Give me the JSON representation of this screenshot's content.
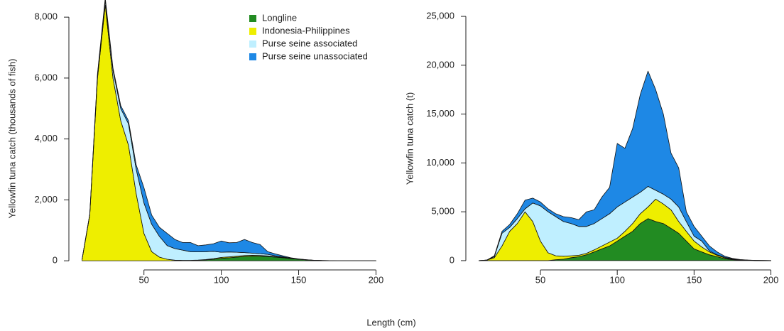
{
  "xlabel": "Length (cm)",
  "chart_data": [
    {
      "type": "stacked_area",
      "ylabel": "Yellowfin tuna catch (thousands of fish)",
      "legend": "topright",
      "x": [
        10,
        15,
        20,
        25,
        30,
        35,
        40,
        45,
        50,
        55,
        60,
        65,
        70,
        75,
        80,
        85,
        90,
        95,
        100,
        105,
        110,
        115,
        120,
        125,
        130,
        135,
        140,
        145,
        150,
        155,
        160,
        165,
        170,
        175,
        180,
        185,
        190,
        195,
        200
      ],
      "xlim": [
        2.4,
        207.6
      ],
      "xticks": [
        50,
        100,
        150,
        200
      ],
      "ylim": [
        -300,
        8330
      ],
      "yticks": [
        0,
        {
          "value": 2000,
          "label": "2,000"
        },
        {
          "value": 4000,
          "label": "4,000"
        },
        {
          "value": 6000,
          "label": "6,000"
        },
        {
          "value": 8000,
          "label": "8,000"
        }
      ],
      "series": [
        {
          "name": "Longline",
          "color": "#228b22",
          "values": [
            0,
            0,
            0,
            0,
            0,
            0,
            0,
            0,
            0,
            0,
            0,
            0,
            0,
            5,
            10,
            20,
            30,
            50,
            80,
            100,
            120,
            140,
            150,
            150,
            140,
            120,
            100,
            70,
            50,
            30,
            15,
            8,
            5,
            2,
            1,
            0,
            0,
            0,
            0
          ]
        },
        {
          "name": "Indonesia-Philippines",
          "color": "#eeee00",
          "values": [
            50,
            1500,
            6000,
            8400,
            6000,
            4600,
            3800,
            2200,
            900,
            300,
            120,
            50,
            20,
            10,
            5,
            5,
            10,
            20,
            30,
            30,
            30,
            30,
            30,
            25,
            20,
            15,
            10,
            5,
            2,
            1,
            0,
            0,
            0,
            0,
            0,
            0,
            0,
            0,
            0
          ]
        },
        {
          "name": "Purse seine associated",
          "color": "#bfefff",
          "values": [
            0,
            20,
            100,
            150,
            250,
            400,
            700,
            800,
            1000,
            900,
            680,
            450,
            380,
            335,
            285,
            270,
            260,
            240,
            170,
            160,
            130,
            100,
            70,
            60,
            50,
            30,
            20,
            10,
            5,
            2,
            1,
            0,
            0,
            0,
            0,
            0,
            0,
            0,
            0
          ]
        },
        {
          "name": "Purse seine unassociated",
          "color": "#1e88e5",
          "values": [
            0,
            10,
            50,
            80,
            80,
            100,
            100,
            150,
            500,
            300,
            300,
            400,
            300,
            250,
            300,
            200,
            220,
            250,
            370,
            300,
            320,
            430,
            350,
            300,
            90,
            60,
            30,
            15,
            5,
            3,
            1,
            1,
            0,
            0,
            0,
            0,
            0,
            0,
            0
          ]
        }
      ]
    },
    {
      "type": "stacked_area",
      "ylabel": "Yellowfin tuna catch (t)",
      "x": [
        10,
        15,
        20,
        25,
        30,
        35,
        40,
        45,
        50,
        55,
        60,
        65,
        70,
        75,
        80,
        85,
        90,
        95,
        100,
        105,
        110,
        115,
        120,
        125,
        130,
        135,
        140,
        145,
        150,
        155,
        160,
        165,
        170,
        175,
        180,
        185,
        190,
        195,
        200
      ],
      "xlim": [
        2.4,
        207.6
      ],
      "xticks": [
        50,
        100,
        150,
        200
      ],
      "ylim": [
        -950,
        25950
      ],
      "yticks": [
        0,
        {
          "value": 5000,
          "label": "5,000"
        },
        {
          "value": 10000,
          "label": "10,000"
        },
        {
          "value": 15000,
          "label": "15,000"
        },
        {
          "value": 20000,
          "label": "20,000"
        },
        {
          "value": 25000,
          "label": "25,000"
        }
      ],
      "series": [
        {
          "color": "#228b22",
          "values": [
            0,
            0,
            0,
            0,
            0,
            0,
            0,
            0,
            0,
            0,
            100,
            150,
            300,
            400,
            600,
            900,
            1200,
            1500,
            2000,
            2500,
            3000,
            3800,
            4300,
            4000,
            3800,
            3300,
            2800,
            2000,
            1200,
            900,
            600,
            400,
            200,
            100,
            50,
            30,
            10,
            5,
            0
          ]
        },
        {
          "color": "#eeee00",
          "values": [
            0,
            50,
            300,
            1500,
            3000,
            3800,
            5000,
            4000,
            2000,
            800,
            400,
            300,
            200,
            150,
            150,
            200,
            300,
            400,
            300,
            500,
            800,
            1000,
            1200,
            2300,
            2000,
            1900,
            1200,
            1000,
            800,
            500,
            300,
            150,
            80,
            40,
            20,
            10,
            5,
            3,
            2
          ]
        },
        {
          "color": "#bfefff",
          "values": [
            0,
            0,
            100,
            1300,
            400,
            500,
            300,
            1900,
            3600,
            4200,
            4000,
            3550,
            3300,
            2950,
            2750,
            2700,
            2800,
            2900,
            3200,
            3000,
            2700,
            2200,
            2100,
            900,
            1000,
            1100,
            1500,
            1000,
            500,
            600,
            100,
            50,
            70,
            40,
            20,
            10,
            5,
            4,
            3
          ]
        },
        {
          "color": "#1e88e5",
          "values": [
            0,
            0,
            100,
            200,
            300,
            500,
            900,
            500,
            400,
            300,
            300,
            500,
            600,
            700,
            1500,
            1400,
            2200,
            2700,
            6500,
            5500,
            7000,
            10000,
            11800,
            10300,
            8200,
            4700,
            4000,
            1000,
            1000,
            500,
            500,
            300,
            100,
            50,
            20,
            10,
            10,
            8,
            5
          ]
        }
      ]
    }
  ]
}
